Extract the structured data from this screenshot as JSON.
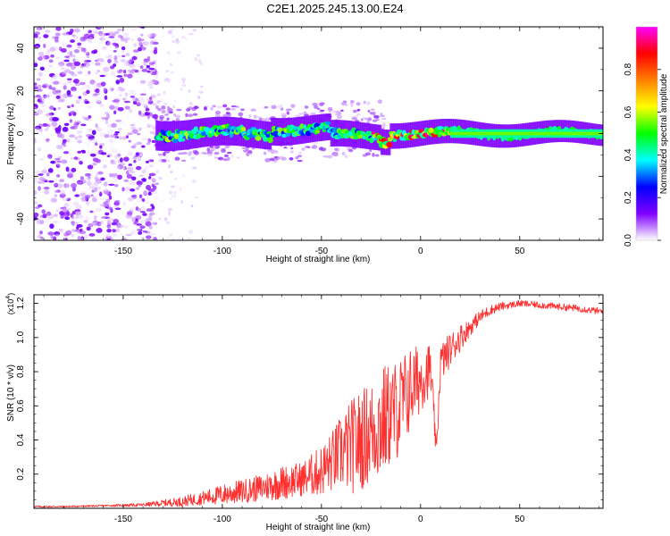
{
  "title": "C2E1.2025.245.13.00.E24",
  "chart_data": [
    {
      "type": "heatmap",
      "xlabel": "Height of straight line (km)",
      "ylabel": "Frequency (Hz)",
      "xlim": [
        -195,
        92
      ],
      "ylim": [
        -50,
        50
      ],
      "xticks": [
        -150,
        -100,
        -50,
        0,
        50
      ],
      "xtick_labels": [
        "-150",
        "-100",
        "-50",
        "0",
        "50"
      ],
      "yticks": [
        -40,
        -20,
        0,
        20,
        40
      ],
      "ytick_labels": [
        "-40",
        "-20",
        "0",
        "20",
        "40"
      ],
      "colorbar": {
        "label": "Normalized spectral amplitude",
        "range": [
          0.0,
          1.0
        ],
        "ticks": [
          0.0,
          0.2,
          0.4,
          0.6,
          0.8
        ],
        "tick_labels": [
          "0.0",
          "0.2",
          "0.4",
          "0.6",
          "0.8"
        ],
        "colormap": [
          "#ffffff",
          "#8000ff",
          "#0000ff",
          "#00ffff",
          "#00ff00",
          "#ffff00",
          "#ff8000",
          "#ff0000",
          "#ff00ff"
        ]
      },
      "regions": [
        {
          "name": "noise",
          "x_range": [
            -195,
            -133
          ],
          "freq_range": [
            -50,
            50
          ],
          "amplitude": [
            0.0,
            0.15
          ]
        },
        {
          "name": "sparse",
          "x_range": [
            -133,
            -110
          ],
          "freq_range": [
            -50,
            50
          ],
          "amplitude": [
            0.0,
            0.05
          ]
        },
        {
          "name": "main band",
          "x_range": [
            -133,
            92
          ],
          "freq_center": 0,
          "freq_halfwidth": [
            4,
            2
          ],
          "amplitude": [
            0.3,
            0.95
          ]
        }
      ]
    },
    {
      "type": "line",
      "xlabel": "Height of straight line (km)",
      "ylabel": "SNR (10 * v/v)",
      "multiplier": "(x10",
      "multiplier_exp": "4",
      "xlim": [
        -195,
        92
      ],
      "ylim": [
        0,
        1.25
      ],
      "xticks": [
        -150,
        -100,
        -50,
        0,
        50
      ],
      "xtick_labels": [
        "-150",
        "-100",
        "-50",
        "0",
        "50"
      ],
      "yticks": [
        0.2,
        0.4,
        0.6,
        0.8,
        1.0,
        1.2
      ],
      "ytick_labels": [
        "0.2",
        "0.4",
        "0.6",
        "0.8",
        "1.0",
        "1.2"
      ],
      "color": "#ff3030",
      "series": [
        {
          "name": "SNR",
          "x": [
            -195,
            -180,
            -160,
            -140,
            -130,
            -120,
            -110,
            -100,
            -90,
            -80,
            -70,
            -60,
            -50,
            -45,
            -40,
            -35,
            -30,
            -25,
            -20,
            -15,
            -10,
            -5,
            0,
            5,
            8,
            10,
            15,
            20,
            25,
            30,
            35,
            40,
            45,
            50,
            60,
            70,
            80,
            92
          ],
          "values": [
            0.01,
            0.01,
            0.015,
            0.02,
            0.03,
            0.04,
            0.06,
            0.08,
            0.1,
            0.12,
            0.15,
            0.17,
            0.22,
            0.27,
            0.33,
            0.36,
            0.4,
            0.45,
            0.5,
            0.55,
            0.6,
            0.7,
            0.76,
            0.82,
            0.32,
            0.85,
            0.93,
            1.0,
            1.06,
            1.12,
            1.16,
            1.18,
            1.19,
            1.2,
            1.19,
            1.18,
            1.17,
            1.15
          ],
          "noise_amplitude": [
            0.005,
            0.005,
            0.005,
            0.01,
            0.02,
            0.03,
            0.04,
            0.06,
            0.07,
            0.08,
            0.1,
            0.1,
            0.15,
            0.18,
            0.22,
            0.28,
            0.3,
            0.3,
            0.35,
            0.3,
            0.3,
            0.25,
            0.2,
            0.15,
            0.05,
            0.12,
            0.1,
            0.08,
            0.05,
            0.04,
            0.03,
            0.025,
            0.02,
            0.02,
            0.02,
            0.02,
            0.02,
            0.02
          ]
        }
      ]
    }
  ]
}
